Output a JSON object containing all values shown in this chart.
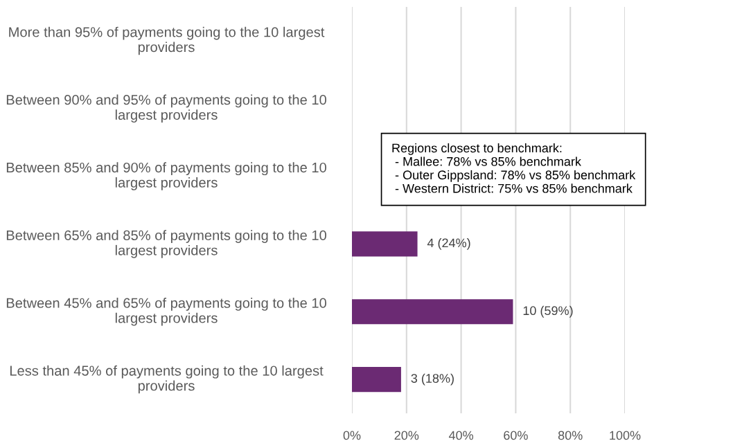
{
  "chart_data": {
    "type": "bar",
    "orientation": "horizontal",
    "categories": [
      "More than 95% of payments going to the 10 largest providers",
      "Between 90% and 95% of payments going to the 10 largest providers",
      "Between 85% and 90% of payments going to the 10 largest providers",
      "Between 65% and 85% of payments going to the 10 largest providers",
      "Between 45% and 65% of payments going to the 10 largest providers",
      "Less than 45% of payments going to the 10 largest providers"
    ],
    "values": [
      null,
      null,
      null,
      24,
      59,
      18
    ],
    "value_labels": [
      null,
      null,
      null,
      "4 (24%)",
      "10 (59%)",
      "3 (18%)"
    ],
    "color": "#6b2a73",
    "xlim": [
      0,
      100
    ],
    "xticks": [
      {
        "value": 0,
        "label": "0%"
      },
      {
        "value": 20,
        "label": "20%"
      },
      {
        "value": 40,
        "label": "40%"
      },
      {
        "value": 60,
        "label": "60%"
      },
      {
        "value": 80,
        "label": "80%"
      },
      {
        "value": 100,
        "label": "100%"
      }
    ],
    "grid": "x",
    "annotations": [
      "Regions closest to benchmark:\n - Mallee: 78% vs 85% benchmark\n - Outer Gippsland: 78% vs 85% benchmark\n - Western District: 75% vs 85% benchmark"
    ]
  }
}
